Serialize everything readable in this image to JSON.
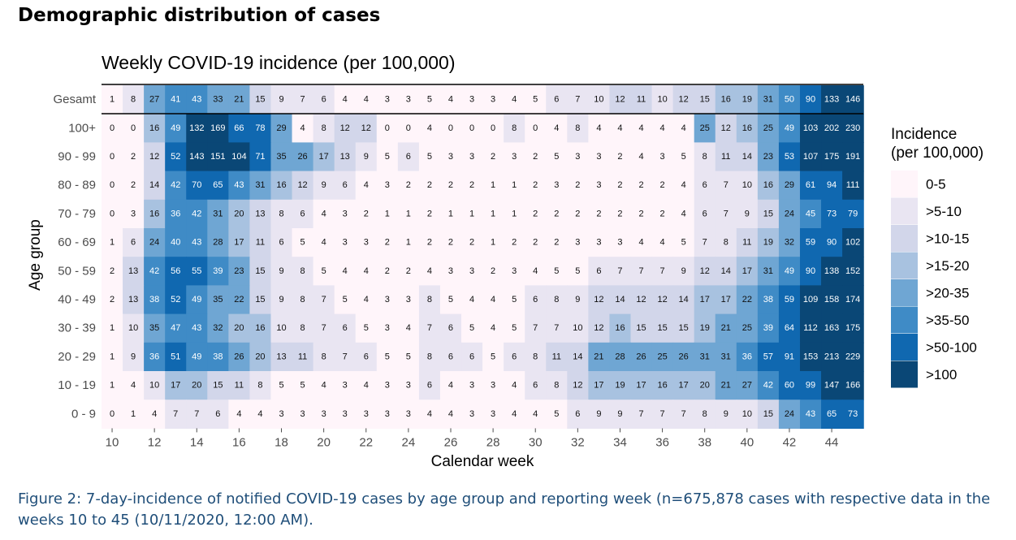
{
  "page": {
    "heading": "Demographic distribution of cases",
    "caption": "Figure 2: 7-day-incidence of notified COVID-19 cases by age group and reporting week (n=675,878 cases with respective data in the weeks 10 to 45 (10/11/2020, 12:00 AM)."
  },
  "chart_data": {
    "type": "heatmap",
    "title": "Weekly COVID-19 incidence (per 100,000)",
    "xlabel": "Calendar week",
    "ylabel": "Age group",
    "weeks": [
      10,
      11,
      12,
      13,
      14,
      15,
      16,
      17,
      18,
      19,
      20,
      21,
      22,
      23,
      24,
      25,
      26,
      27,
      28,
      29,
      30,
      31,
      32,
      33,
      34,
      35,
      36,
      37,
      38,
      39,
      40,
      41,
      42,
      43,
      44,
      45
    ],
    "x_ticks": [
      10,
      12,
      14,
      16,
      18,
      20,
      22,
      24,
      26,
      28,
      30,
      32,
      34,
      36,
      38,
      40,
      42,
      44
    ],
    "rows": [
      "Gesamt",
      "100+",
      "90 - 99",
      "80 - 89",
      "70 - 79",
      "60 - 69",
      "50 - 59",
      "40 - 49",
      "30 - 39",
      "20 - 29",
      "10 - 19",
      "0 - 9"
    ],
    "values": [
      [
        1,
        8,
        27,
        41,
        43,
        33,
        21,
        15,
        9,
        7,
        6,
        4,
        4,
        3,
        3,
        5,
        4,
        3,
        3,
        4,
        5,
        6,
        7,
        10,
        12,
        11,
        10,
        12,
        15,
        16,
        19,
        31,
        50,
        90,
        133,
        146
      ],
      [
        0,
        0,
        16,
        49,
        132,
        169,
        66,
        78,
        29,
        4,
        8,
        12,
        12,
        0,
        0,
        4,
        0,
        0,
        0,
        8,
        0,
        4,
        8,
        4,
        4,
        4,
        4,
        4,
        25,
        12,
        16,
        25,
        49,
        103,
        202,
        230
      ],
      [
        0,
        2,
        12,
        52,
        143,
        151,
        104,
        71,
        35,
        26,
        17,
        13,
        9,
        5,
        6,
        5,
        3,
        3,
        2,
        3,
        2,
        5,
        3,
        3,
        2,
        4,
        3,
        5,
        8,
        11,
        14,
        23,
        53,
        107,
        175,
        191
      ],
      [
        0,
        2,
        14,
        42,
        70,
        65,
        43,
        31,
        16,
        12,
        9,
        6,
        4,
        3,
        2,
        2,
        2,
        2,
        1,
        1,
        2,
        3,
        2,
        3,
        2,
        2,
        2,
        4,
        6,
        7,
        10,
        16,
        29,
        61,
        94,
        111
      ],
      [
        0,
        3,
        16,
        36,
        42,
        31,
        20,
        13,
        8,
        6,
        4,
        3,
        2,
        1,
        1,
        2,
        1,
        1,
        1,
        1,
        2,
        2,
        2,
        2,
        2,
        2,
        2,
        4,
        6,
        7,
        9,
        15,
        24,
        45,
        73,
        79
      ],
      [
        1,
        6,
        24,
        40,
        43,
        28,
        17,
        11,
        6,
        5,
        4,
        3,
        3,
        2,
        1,
        2,
        2,
        2,
        1,
        2,
        2,
        2,
        3,
        3,
        3,
        4,
        4,
        5,
        7,
        8,
        11,
        19,
        32,
        59,
        90,
        102
      ],
      [
        2,
        13,
        42,
        56,
        55,
        39,
        23,
        15,
        9,
        8,
        5,
        4,
        4,
        2,
        2,
        4,
        3,
        3,
        2,
        3,
        4,
        5,
        5,
        6,
        7,
        7,
        7,
        9,
        12,
        14,
        17,
        31,
        49,
        90,
        138,
        152
      ],
      [
        2,
        13,
        38,
        52,
        49,
        35,
        22,
        15,
        9,
        8,
        7,
        5,
        4,
        3,
        3,
        8,
        5,
        4,
        4,
        5,
        6,
        8,
        9,
        12,
        14,
        12,
        12,
        14,
        17,
        17,
        22,
        38,
        59,
        109,
        158,
        174
      ],
      [
        1,
        10,
        35,
        47,
        43,
        32,
        20,
        16,
        10,
        8,
        7,
        6,
        5,
        3,
        4,
        7,
        6,
        5,
        4,
        5,
        7,
        7,
        10,
        12,
        16,
        15,
        15,
        15,
        19,
        21,
        25,
        39,
        64,
        112,
        163,
        175
      ],
      [
        1,
        9,
        36,
        51,
        49,
        38,
        26,
        20,
        13,
        11,
        8,
        7,
        6,
        5,
        5,
        8,
        6,
        6,
        5,
        6,
        8,
        11,
        14,
        21,
        28,
        26,
        25,
        26,
        31,
        31,
        36,
        57,
        91,
        153,
        213,
        229
      ],
      [
        1,
        4,
        10,
        17,
        20,
        15,
        11,
        8,
        5,
        5,
        4,
        3,
        4,
        3,
        3,
        6,
        4,
        3,
        3,
        4,
        6,
        8,
        12,
        17,
        19,
        17,
        16,
        17,
        20,
        21,
        27,
        42,
        60,
        99,
        147,
        166
      ],
      [
        0,
        1,
        4,
        7,
        7,
        6,
        4,
        4,
        3,
        3,
        3,
        3,
        3,
        3,
        3,
        4,
        4,
        3,
        3,
        4,
        4,
        5,
        6,
        9,
        9,
        7,
        7,
        7,
        8,
        9,
        10,
        15,
        24,
        43,
        65,
        73
      ]
    ],
    "legend": {
      "title_line1": "Incidence",
      "title_line2": "(per 100,000)",
      "classes": [
        "0-5",
        ">5-10",
        ">10-15",
        ">15-20",
        ">20-35",
        ">35-50",
        ">50-100",
        ">100"
      ],
      "thresholds": [
        5,
        10,
        15,
        20,
        35,
        50,
        100
      ],
      "colors": [
        "#fff5fa",
        "#e9e5f2",
        "#d2d6ea",
        "#a8c2e0",
        "#6fa6d3",
        "#3f8bc6",
        "#1068b0",
        "#0a4776"
      ]
    }
  }
}
